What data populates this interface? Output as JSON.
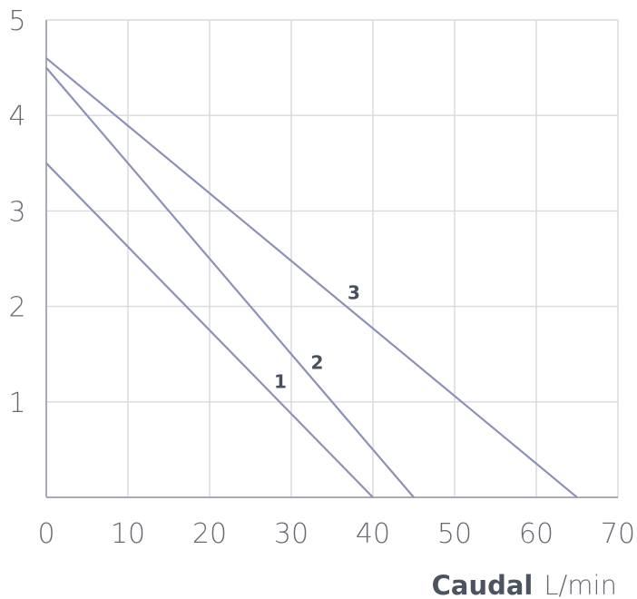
{
  "chart_data": {
    "type": "line",
    "xlabel": {
      "title": "Caudal",
      "unit": "L/min"
    },
    "ylabel": "",
    "xlim": [
      0,
      70
    ],
    "ylim": [
      0,
      5
    ],
    "x_ticks": [
      "0",
      "10",
      "20",
      "30",
      "40",
      "50",
      "60",
      "70"
    ],
    "y_ticks": [
      "1",
      "2",
      "3",
      "4",
      "5"
    ],
    "grid": true,
    "series": [
      {
        "name": "1",
        "x": [
          0,
          40
        ],
        "y": [
          3.5,
          0
        ]
      },
      {
        "name": "2",
        "x": [
          0,
          45
        ],
        "y": [
          4.5,
          0
        ]
      },
      {
        "name": "3",
        "x": [
          0,
          65
        ],
        "y": [
          4.6,
          0
        ]
      }
    ],
    "series_label_anchor_x": [
      28,
      32.5,
      37
    ],
    "line_color": "#8d91b8",
    "grid_color": "#d9d9de",
    "axis_color": "#a9acb4"
  }
}
